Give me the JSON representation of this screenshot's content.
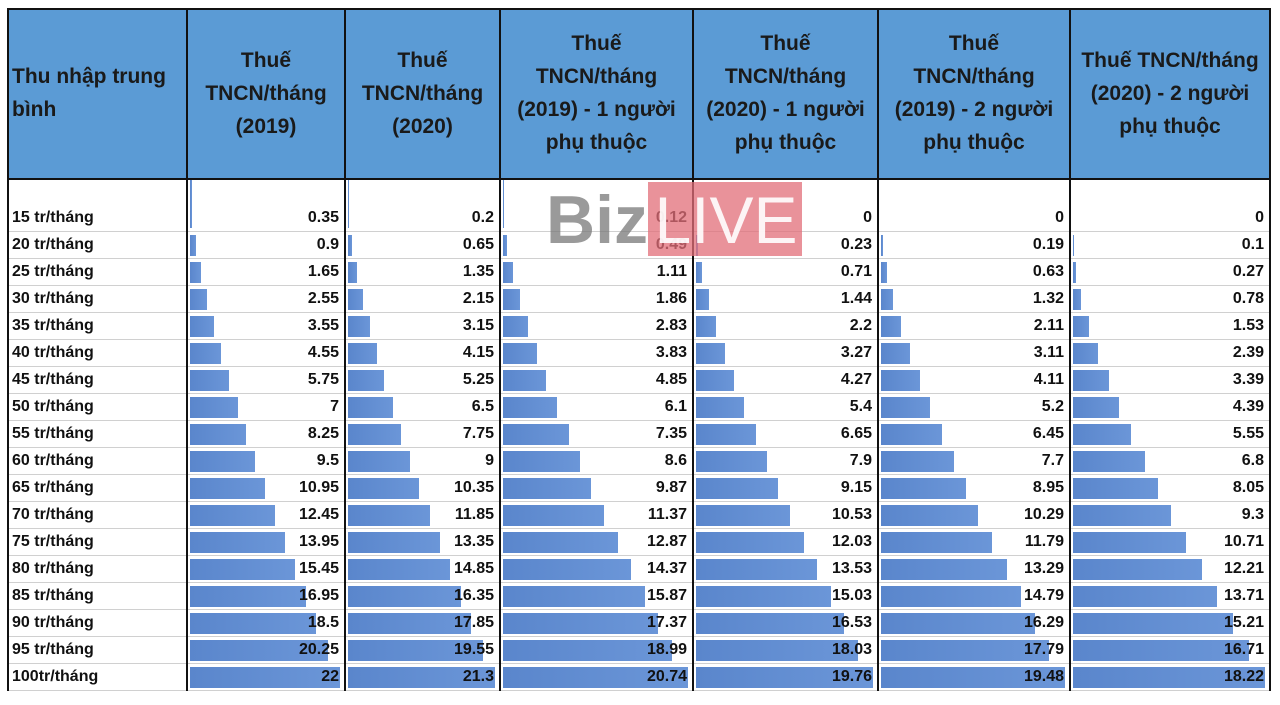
{
  "table": {
    "header": [
      "Thu nhập trung bình",
      "Thuế TNCN/tháng (2019)",
      "Thuế TNCN/tháng (2020)",
      "Thuế TNCN/tháng (2019) - 1 người phụ thuộc",
      "Thuế TNCN/tháng (2020) - 1 người phụ thuộc",
      "Thuế TNCN/tháng (2019) - 2 người phụ thuộc",
      "Thuế TNCN/tháng (2020) - 2 người phụ thuộc"
    ],
    "rows": [
      [
        "15 tr/tháng",
        0.35,
        0.2,
        0.12,
        0,
        0,
        0
      ],
      [
        "20 tr/tháng",
        0.9,
        0.65,
        0.49,
        0.23,
        0.19,
        0.1
      ],
      [
        "25 tr/tháng",
        1.65,
        1.35,
        1.11,
        0.71,
        0.63,
        0.27
      ],
      [
        "30 tr/tháng",
        2.55,
        2.15,
        1.86,
        1.44,
        1.32,
        0.78
      ],
      [
        "35 tr/tháng",
        3.55,
        3.15,
        2.83,
        2.2,
        2.11,
        1.53
      ],
      [
        "40 tr/tháng",
        4.55,
        4.15,
        3.83,
        3.27,
        3.11,
        2.39
      ],
      [
        "45 tr/tháng",
        5.75,
        5.25,
        4.85,
        4.27,
        4.11,
        3.39
      ],
      [
        "50 tr/tháng",
        7,
        6.5,
        6.1,
        5.4,
        5.2,
        4.39
      ],
      [
        "55 tr/tháng",
        8.25,
        7.75,
        7.35,
        6.65,
        6.45,
        5.55
      ],
      [
        "60 tr/tháng",
        9.5,
        9,
        8.6,
        7.9,
        7.7,
        6.8
      ],
      [
        "65 tr/tháng",
        10.95,
        10.35,
        9.87,
        9.15,
        8.95,
        8.05
      ],
      [
        "70 tr/tháng",
        12.45,
        11.85,
        11.37,
        10.53,
        10.29,
        9.3
      ],
      [
        "75 tr/tháng",
        13.95,
        13.35,
        12.87,
        12.03,
        11.79,
        10.71
      ],
      [
        "80 tr/tháng",
        15.45,
        14.85,
        14.37,
        13.53,
        13.29,
        12.21
      ],
      [
        "85 tr/tháng",
        16.95,
        16.35,
        15.87,
        15.03,
        14.79,
        13.71
      ],
      [
        "90 tr/tháng",
        18.5,
        17.85,
        17.37,
        16.53,
        16.29,
        15.21
      ],
      [
        "95 tr/tháng",
        20.25,
        19.55,
        18.99,
        18.03,
        17.79,
        16.71
      ],
      [
        "100tr/tháng",
        22,
        21.3,
        20.74,
        19.76,
        19.48,
        18.22
      ]
    ]
  },
  "watermark": {
    "part1": "Biz",
    "part2": "LIVE"
  }
}
